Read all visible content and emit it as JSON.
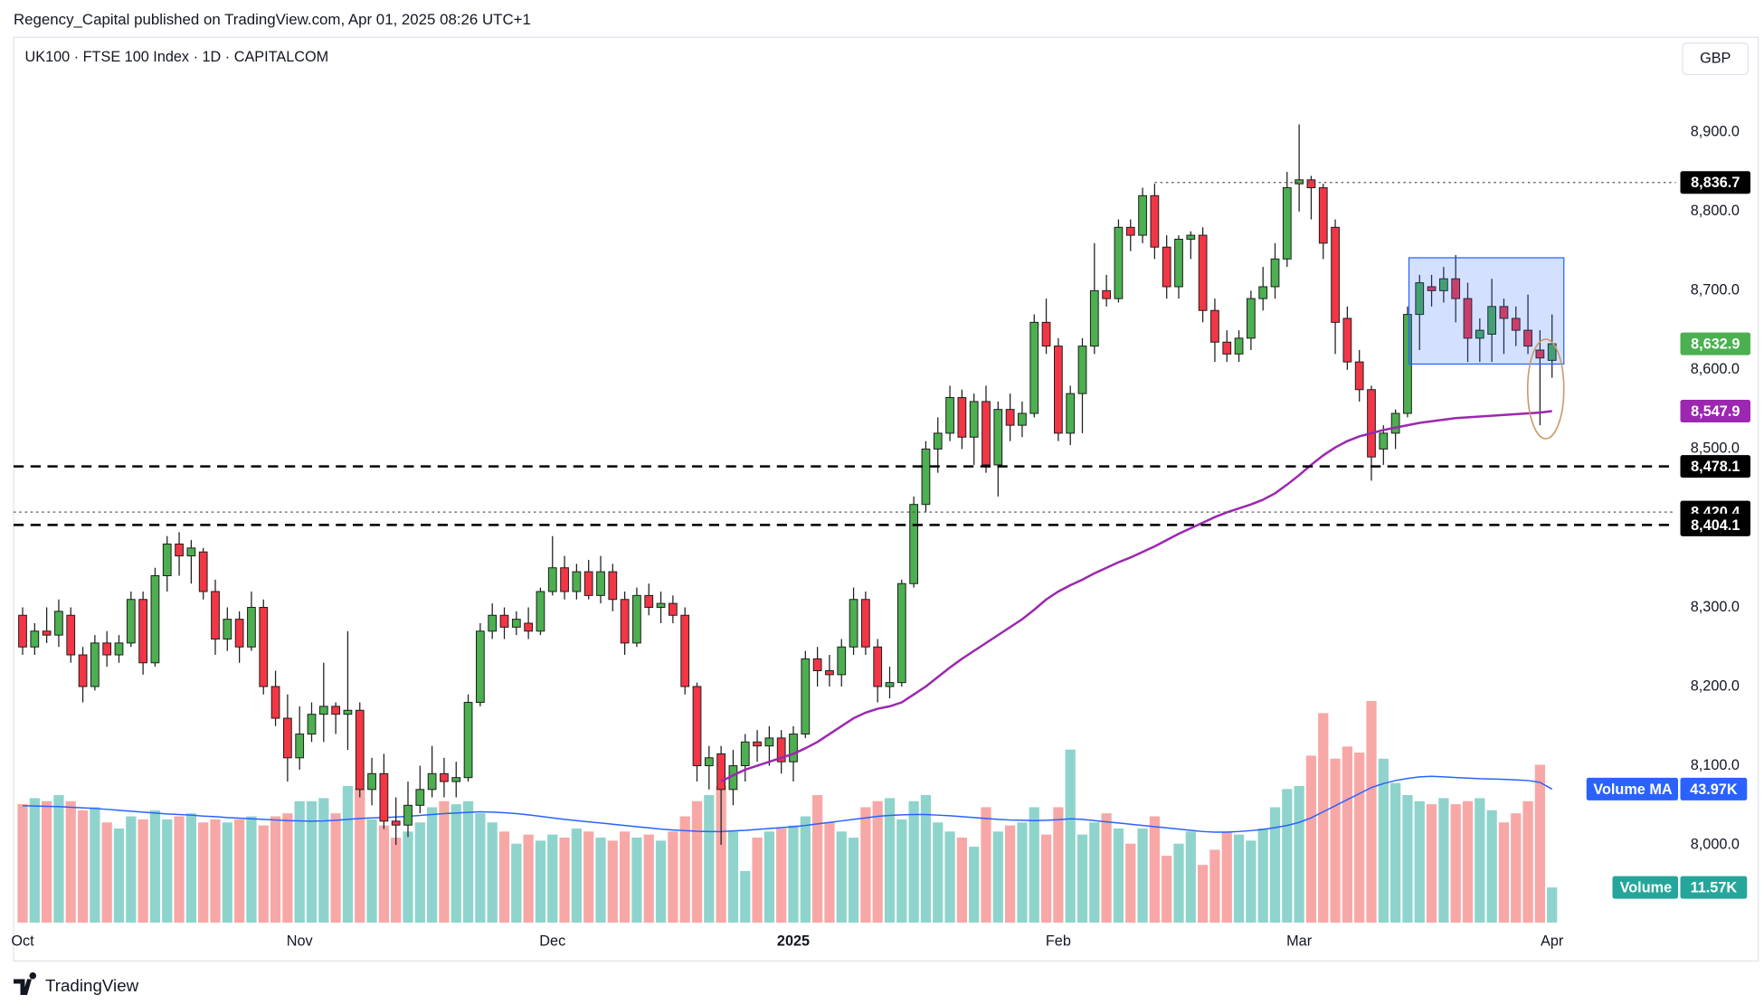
{
  "header": {
    "publisher": "Regency_Capital published on TradingView.com, Apr 01, 2025 08:26 UTC+1"
  },
  "chart_data": {
    "type": "candlestick",
    "title": "UK100 · FTSE 100 Index · 1D · CAPITALCOM",
    "currency": "GBP",
    "categories": [
      "Oct",
      null,
      null,
      null,
      null,
      null,
      null,
      null,
      null,
      null,
      null,
      null,
      null,
      null,
      null,
      null,
      null,
      null,
      null,
      null,
      null,
      null,
      null,
      "Nov",
      null,
      null,
      null,
      null,
      null,
      null,
      null,
      null,
      null,
      null,
      null,
      null,
      null,
      null,
      null,
      null,
      null,
      null,
      null,
      null,
      "Dec",
      null,
      null,
      null,
      null,
      null,
      null,
      null,
      null,
      null,
      null,
      null,
      null,
      null,
      null,
      null,
      null,
      null,
      null,
      null,
      "2025",
      null,
      null,
      null,
      null,
      null,
      null,
      null,
      null,
      null,
      null,
      null,
      null,
      null,
      null,
      null,
      null,
      null,
      null,
      null,
      null,
      null,
      "Feb",
      null,
      null,
      null,
      null,
      null,
      null,
      null,
      null,
      null,
      null,
      null,
      null,
      null,
      null,
      null,
      null,
      null,
      null,
      null,
      "Mar",
      null,
      null,
      null,
      null,
      null,
      null,
      null,
      null,
      null,
      null,
      null,
      null,
      null,
      null,
      null,
      null,
      null,
      null,
      null,
      null,
      "Apr"
    ],
    "open": [
      8290,
      8250,
      8270,
      8265,
      8290,
      8240,
      8200,
      8255,
      8240,
      8255,
      8310,
      8230,
      8340,
      8380,
      8365,
      8370,
      8320,
      8260,
      8285,
      8250,
      8300,
      8200,
      8160,
      8110,
      8140,
      8165,
      8175,
      8165,
      8170,
      8070,
      8090,
      8030,
      8025,
      8050,
      8070,
      8090,
      8080,
      8085,
      8180,
      8270,
      8290,
      8275,
      8280,
      8270,
      8320,
      8350,
      8320,
      8345,
      8315,
      8345,
      8310,
      8255,
      8315,
      8300,
      8305,
      8290,
      8200,
      8100,
      8115,
      8070,
      8100,
      8130,
      8125,
      8135,
      8105,
      8140,
      8235,
      8220,
      8215,
      8250,
      8310,
      8250,
      8200,
      8205,
      8330,
      8430,
      8500,
      8520,
      8565,
      8515,
      8560,
      8480,
      8550,
      8530,
      8545,
      8660,
      8630,
      8520,
      8570,
      8630,
      8700,
      8690,
      8780,
      8770,
      8820,
      8755,
      8705,
      8765,
      8770,
      8675,
      8635,
      8620,
      8640,
      8690,
      8705,
      8740,
      8835,
      8840,
      8830,
      8780,
      8665,
      8610,
      8575,
      8500,
      8520,
      8545,
      8670,
      8705,
      8700,
      8715,
      8690,
      8640,
      8645,
      8680,
      8665,
      8650,
      8625,
      8612
    ],
    "high": [
      8300,
      8280,
      8300,
      8310,
      8300,
      8250,
      8265,
      8270,
      8265,
      8320,
      8320,
      8350,
      8390,
      8395,
      8385,
      8375,
      8335,
      8300,
      8295,
      8320,
      8310,
      8220,
      8190,
      8175,
      8180,
      8230,
      8180,
      8270,
      8180,
      8110,
      8115,
      8060,
      8080,
      8100,
      8125,
      8110,
      8105,
      8190,
      8280,
      8305,
      8300,
      8295,
      8300,
      8325,
      8390,
      8365,
      8355,
      8360,
      8365,
      8355,
      8320,
      8325,
      8330,
      8320,
      8315,
      8300,
      8205,
      8125,
      8125,
      8120,
      8140,
      8145,
      8150,
      8145,
      8150,
      8245,
      8250,
      8240,
      8260,
      8325,
      8320,
      8260,
      8225,
      8335,
      8440,
      8510,
      8540,
      8580,
      8575,
      8570,
      8580,
      8560,
      8570,
      8560,
      8670,
      8690,
      8640,
      8580,
      8640,
      8760,
      8720,
      8790,
      8790,
      8830,
      8835,
      8770,
      8770,
      8775,
      8780,
      8690,
      8650,
      8650,
      8700,
      8730,
      8760,
      8850,
      8910,
      8845,
      8835,
      8790,
      8680,
      8625,
      8580,
      8530,
      8550,
      8680,
      8720,
      8720,
      8730,
      8745,
      8710,
      8665,
      8715,
      8690,
      8680,
      8695,
      8650,
      8670
    ],
    "low": [
      8240,
      8240,
      8255,
      8250,
      8230,
      8180,
      8195,
      8225,
      8230,
      8250,
      8215,
      8225,
      8320,
      8340,
      8330,
      8310,
      8240,
      8245,
      8230,
      8245,
      8190,
      8150,
      8080,
      8095,
      8130,
      8130,
      8140,
      8120,
      8060,
      8050,
      8020,
      8000,
      8010,
      8040,
      8060,
      8060,
      8060,
      8080,
      8175,
      8260,
      8260,
      8265,
      8260,
      8265,
      8315,
      8310,
      8310,
      8310,
      8305,
      8295,
      8240,
      8250,
      8290,
      8280,
      8280,
      8190,
      8080,
      8070,
      8000,
      8050,
      8080,
      8105,
      8100,
      8090,
      8080,
      8135,
      8200,
      8200,
      8200,
      8240,
      8240,
      8180,
      8185,
      8200,
      8325,
      8420,
      8470,
      8510,
      8500,
      8480,
      8470,
      8440,
      8510,
      8515,
      8540,
      8620,
      8510,
      8505,
      8520,
      8620,
      8680,
      8685,
      8750,
      8760,
      8740,
      8690,
      8690,
      8740,
      8660,
      8610,
      8610,
      8610,
      8625,
      8675,
      8690,
      8730,
      8800,
      8790,
      8740,
      8620,
      8600,
      8560,
      8460,
      8480,
      8500,
      8540,
      8625,
      8680,
      8685,
      8660,
      8610,
      8610,
      8610,
      8620,
      8630,
      8620,
      8530,
      8590
    ],
    "close": [
      8250,
      8270,
      8265,
      8295,
      8240,
      8200,
      8255,
      8240,
      8255,
      8310,
      8230,
      8340,
      8380,
      8365,
      8375,
      8320,
      8260,
      8285,
      8250,
      8300,
      8200,
      8160,
      8110,
      8140,
      8165,
      8175,
      8165,
      8170,
      8070,
      8090,
      8030,
      8025,
      8050,
      8070,
      8090,
      8080,
      8085,
      8180,
      8270,
      8290,
      8275,
      8285,
      8270,
      8320,
      8350,
      8320,
      8345,
      8315,
      8345,
      8310,
      8255,
      8315,
      8300,
      8305,
      8290,
      8200,
      8100,
      8110,
      8070,
      8100,
      8130,
      8125,
      8135,
      8105,
      8140,
      8235,
      8220,
      8215,
      8250,
      8310,
      8250,
      8200,
      8205,
      8330,
      8430,
      8500,
      8520,
      8565,
      8515,
      8560,
      8480,
      8550,
      8530,
      8545,
      8660,
      8630,
      8520,
      8570,
      8630,
      8700,
      8690,
      8780,
      8770,
      8820,
      8755,
      8705,
      8765,
      8770,
      8675,
      8635,
      8620,
      8640,
      8690,
      8705,
      8740,
      8830,
      8840,
      8830,
      8760,
      8660,
      8610,
      8575,
      8490,
      8520,
      8545,
      8670,
      8710,
      8700,
      8715,
      8690,
      8640,
      8650,
      8680,
      8665,
      8650,
      8630,
      8615,
      8632.9
    ],
    "close_label": "8,632.9",
    "up_color": "#4caf50",
    "down_color": "#f23645",
    "moving_average": {
      "color": "#9c27b0",
      "last_label": "8,547.9",
      "values": [
        null,
        null,
        null,
        null,
        null,
        null,
        null,
        null,
        null,
        null,
        null,
        null,
        null,
        null,
        null,
        null,
        null,
        null,
        null,
        null,
        null,
        null,
        null,
        null,
        null,
        null,
        null,
        null,
        null,
        null,
        null,
        null,
        null,
        null,
        null,
        null,
        null,
        null,
        null,
        null,
        null,
        null,
        null,
        null,
        null,
        null,
        null,
        null,
        null,
        null,
        null,
        null,
        null,
        null,
        null,
        null,
        null,
        null,
        8080,
        8088,
        8095,
        8100,
        8105,
        8110,
        8115,
        8122,
        8130,
        8140,
        8150,
        8160,
        8167,
        8172,
        8175,
        8180,
        8190,
        8200,
        8212,
        8224,
        8235,
        8245,
        8255,
        8265,
        8275,
        8285,
        8297,
        8310,
        8320,
        8328,
        8335,
        8343,
        8350,
        8357,
        8363,
        8370,
        8377,
        8385,
        8393,
        8400,
        8407,
        8414,
        8420,
        8425,
        8430,
        8436,
        8444,
        8455,
        8467,
        8480,
        8492,
        8502,
        8510,
        8516,
        8520,
        8524,
        8527,
        8530,
        8533,
        8535,
        8537,
        8539,
        8540,
        8541,
        8542,
        8543,
        8544,
        8545,
        8546,
        8547.9
      ]
    },
    "volume": {
      "name": "Volume",
      "last_label": "11.57K",
      "up_color": "#8fd4cc",
      "down_color": "#f7a8a6",
      "values": [
        39,
        41,
        40,
        42,
        40,
        37,
        38,
        33,
        31,
        35,
        34,
        37,
        34,
        35,
        36,
        33,
        34,
        33,
        34,
        35,
        32,
        35,
        36,
        40,
        40,
        41,
        36,
        45,
        44,
        34,
        32,
        28,
        30,
        33,
        38,
        40,
        39,
        40,
        36,
        33,
        30,
        26,
        29,
        27,
        29,
        28,
        31,
        30,
        28,
        27,
        30,
        28,
        29,
        27,
        30,
        35,
        40,
        42,
        45,
        30,
        17,
        28,
        30,
        31,
        32,
        35,
        42,
        33,
        30,
        28,
        38,
        40,
        41,
        34,
        40,
        42,
        33,
        30,
        28,
        25,
        38,
        30,
        32,
        33,
        38,
        29,
        38,
        57,
        29,
        33,
        36,
        31,
        26,
        31,
        35,
        22,
        26,
        30,
        19,
        24,
        30,
        29,
        27,
        31,
        38,
        44,
        45,
        55,
        69,
        54,
        58,
        56,
        73,
        54,
        46,
        42,
        40,
        39,
        41,
        39,
        40,
        41,
        37,
        33,
        36,
        40,
        52,
        11.57
      ]
    },
    "volume_ma": {
      "name": "Volume MA",
      "color": "#2962ff",
      "last_label": "43.97K",
      "values": [
        38.5,
        38.4,
        38.3,
        38.2,
        38.0,
        37.8,
        37.6,
        37.3,
        37.0,
        36.7,
        36.4,
        36.1,
        35.8,
        35.6,
        35.4,
        35.1,
        34.9,
        34.6,
        34.4,
        34.2,
        34.0,
        33.8,
        33.6,
        33.5,
        33.4,
        33.5,
        33.7,
        34.0,
        34.3,
        34.5,
        34.6,
        34.8,
        35.0,
        35.3,
        35.6,
        35.9,
        36.1,
        36.3,
        36.5,
        36.4,
        36.2,
        35.9,
        35.5,
        35.0,
        34.5,
        34.0,
        33.6,
        33.2,
        32.8,
        32.4,
        32.0,
        31.6,
        31.2,
        30.8,
        30.5,
        30.3,
        30.1,
        30.0,
        30.0,
        30.2,
        30.4,
        30.7,
        31.0,
        31.3,
        31.6,
        32.0,
        32.5,
        33.0,
        33.5,
        34.0,
        34.5,
        35.0,
        35.3,
        35.5,
        35.6,
        35.6,
        35.4,
        35.2,
        34.9,
        34.6,
        34.3,
        34.0,
        33.8,
        33.7,
        33.6,
        33.7,
        33.9,
        34.2,
        34.0,
        33.6,
        33.2,
        32.8,
        32.4,
        32.0,
        31.6,
        31.2,
        30.8,
        30.4,
        30.0,
        29.8,
        29.8,
        30.0,
        30.3,
        30.7,
        31.3,
        32.0,
        33.0,
        34.5,
        36.5,
        38.5,
        40.5,
        42.5,
        44.5,
        45.8,
        46.8,
        47.5,
        48.0,
        48.2,
        48.0,
        47.8,
        47.6,
        47.4,
        47.3,
        47.2,
        47.0,
        46.8,
        46.2,
        43.97
      ]
    },
    "levels": [
      {
        "value": 8836.7,
        "label": "8,836.7",
        "style": "ray"
      },
      {
        "value": 8478.1,
        "label": "8,478.1",
        "style": "dashed"
      },
      {
        "value": 8420.4,
        "label": "8,420.4",
        "style": "dotted"
      },
      {
        "value": 8404.1,
        "label": "8,404.1",
        "style": "dashed"
      }
    ],
    "ylim": [
      7899,
      9020
    ],
    "yticks": [
      {
        "value": 8000,
        "label": "8,000.0"
      },
      {
        "value": 8100,
        "label": "8,100.0"
      },
      {
        "value": 8200,
        "label": "8,200.0"
      },
      {
        "value": 8300,
        "label": "8,300.0"
      },
      {
        "value": 8500,
        "label": "8,500.0"
      },
      {
        "value": 8600,
        "label": "8,600.0"
      },
      {
        "value": 8700,
        "label": "8,700.0"
      },
      {
        "value": 8800,
        "label": "8,800.0"
      },
      {
        "value": 8900,
        "label": "8,900.0"
      }
    ],
    "grid": false
  },
  "footer": {
    "brand": "TradingView"
  }
}
